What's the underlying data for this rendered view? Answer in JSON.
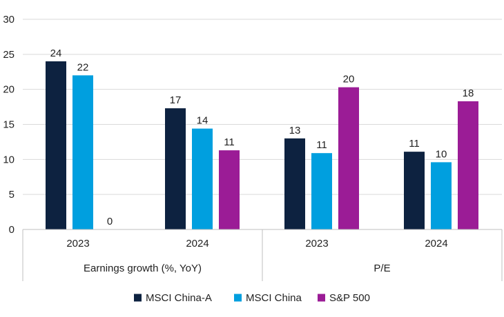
{
  "chart_data": {
    "type": "bar",
    "title": "",
    "xlabel": "",
    "ylabel": "",
    "ylim": [
      0,
      30
    ],
    "yticks": [
      0,
      5,
      10,
      15,
      20,
      25,
      30
    ],
    "grid": true,
    "legend_position": "bottom",
    "groups": [
      {
        "label": "Earnings growth (%, YoY)",
        "categories": [
          {
            "label": "2023",
            "values": [
              24,
              22,
              0
            ],
            "data_labels": [
              "24",
              "22",
              "0"
            ]
          },
          {
            "label": "2024",
            "values": [
              17.3,
              14.4,
              11.3
            ],
            "data_labels": [
              "17",
              "14",
              "11"
            ]
          }
        ]
      },
      {
        "label": "P/E",
        "categories": [
          {
            "label": "2023",
            "values": [
              13,
              10.9,
              20.3
            ],
            "data_labels": [
              "13",
              "11",
              "20"
            ]
          },
          {
            "label": "2024",
            "values": [
              11.1,
              9.6,
              18.3
            ],
            "data_labels": [
              "11",
              "10",
              "18"
            ]
          }
        ]
      }
    ],
    "series": [
      {
        "name": "MSCI China-A",
        "color": "#0d2240"
      },
      {
        "name": "MSCI China",
        "color": "#009fdf"
      },
      {
        "name": "S&P 500",
        "color": "#9b1c96"
      }
    ]
  }
}
